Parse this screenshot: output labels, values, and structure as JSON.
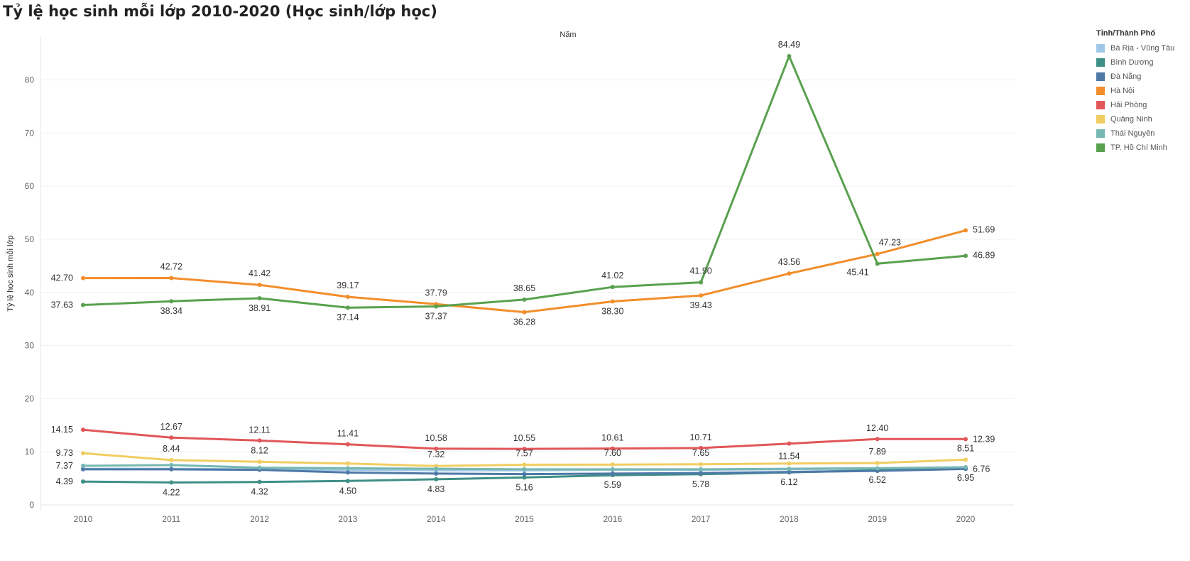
{
  "chart_data": {
    "type": "line",
    "title": "Tỷ lệ học sinh mỗi lớp 2010-2020 (Học sinh/lớp học)",
    "xlabel": "Năm",
    "ylabel": "Tỷ lệ học sinh mỗi lớp",
    "x": [
      "2010",
      "2011",
      "2012",
      "2013",
      "2014",
      "2015",
      "2016",
      "2017",
      "2018",
      "2019",
      "2020"
    ],
    "ylim": [
      0,
      88
    ],
    "yticks": [
      0,
      10,
      20,
      30,
      40,
      50,
      60,
      70,
      80
    ],
    "grid": true,
    "legend_title": "Tỉnh/Thành Phố",
    "legend_position": "right",
    "series": [
      {
        "name": "Bà Rịa - Vũng Tàu",
        "color": "#a0c8e6",
        "values": [
          6.8,
          6.8,
          6.7,
          6.6,
          6.5,
          6.5,
          6.6,
          6.6,
          6.7,
          6.8,
          7.0
        ],
        "labels": [
          null,
          null,
          null,
          null,
          null,
          null,
          null,
          null,
          null,
          null,
          null
        ]
      },
      {
        "name": "Bình Dương",
        "color": "#3e8f86",
        "values": [
          4.39,
          4.22,
          4.32,
          4.5,
          4.83,
          5.16,
          5.59,
          5.78,
          6.12,
          6.52,
          6.95
        ],
        "labels": [
          "4.39",
          "4.22",
          "4.32",
          "4.50",
          "4.83",
          "5.16",
          "5.59",
          "5.78",
          "6.12",
          "6.52",
          "6.95"
        ]
      },
      {
        "name": "Đà Nẵng",
        "color": "#4e79a7",
        "values": [
          6.7,
          6.7,
          6.6,
          6.1,
          5.9,
          5.8,
          5.9,
          6.0,
          6.2,
          6.4,
          6.76
        ],
        "labels": [
          null,
          null,
          null,
          null,
          null,
          null,
          null,
          null,
          null,
          null,
          "6.76"
        ]
      },
      {
        "name": "Hà Nội",
        "color": "#f28e2b",
        "values": [
          42.7,
          42.72,
          41.42,
          39.17,
          37.79,
          36.28,
          38.3,
          39.43,
          43.56,
          47.23,
          51.69
        ],
        "labels": [
          "42.70",
          "42.72",
          "41.42",
          "39.17",
          "37.79",
          "36.28",
          "38.30",
          "39.43",
          "43.56",
          "47.23",
          "51.69"
        ]
      },
      {
        "name": "Hải Phòng",
        "color": "#e15759",
        "values": [
          14.15,
          12.67,
          12.11,
          11.41,
          10.58,
          10.55,
          10.61,
          10.71,
          11.54,
          12.4,
          12.39
        ],
        "labels": [
          "14.15",
          "12.67",
          "12.11",
          "11.41",
          "10.58",
          "10.55",
          "10.61",
          "10.71",
          "11.54",
          "12.40",
          "12.39"
        ]
      },
      {
        "name": "Quảng Ninh",
        "color": "#f1ce63",
        "values": [
          9.73,
          8.44,
          8.12,
          7.8,
          7.32,
          7.57,
          7.6,
          7.65,
          7.8,
          7.89,
          8.51
        ],
        "labels": [
          "9.73",
          "8.44",
          "8.12",
          null,
          "7.32",
          "7.57",
          "7.60",
          "7.65",
          null,
          "7.89",
          "8.51"
        ]
      },
      {
        "name": "Thái  Nguyên",
        "color": "#76b7b2",
        "values": [
          7.37,
          7.5,
          7.0,
          6.9,
          6.8,
          6.7,
          6.7,
          6.7,
          6.8,
          6.9,
          7.1
        ],
        "labels": [
          "7.37",
          null,
          null,
          null,
          null,
          null,
          null,
          null,
          null,
          null,
          null
        ]
      },
      {
        "name": "TP. Hồ Chí Minh",
        "color": "#59a14f",
        "values": [
          37.63,
          38.34,
          38.91,
          37.14,
          37.37,
          38.65,
          41.02,
          41.9,
          84.49,
          45.41,
          46.89
        ],
        "labels": [
          "37.63",
          "38.34",
          "38.91",
          "37.14",
          "37.37",
          "38.65",
          "41.02",
          "41.90",
          "84.49",
          "45.41",
          "46.89"
        ]
      }
    ]
  }
}
